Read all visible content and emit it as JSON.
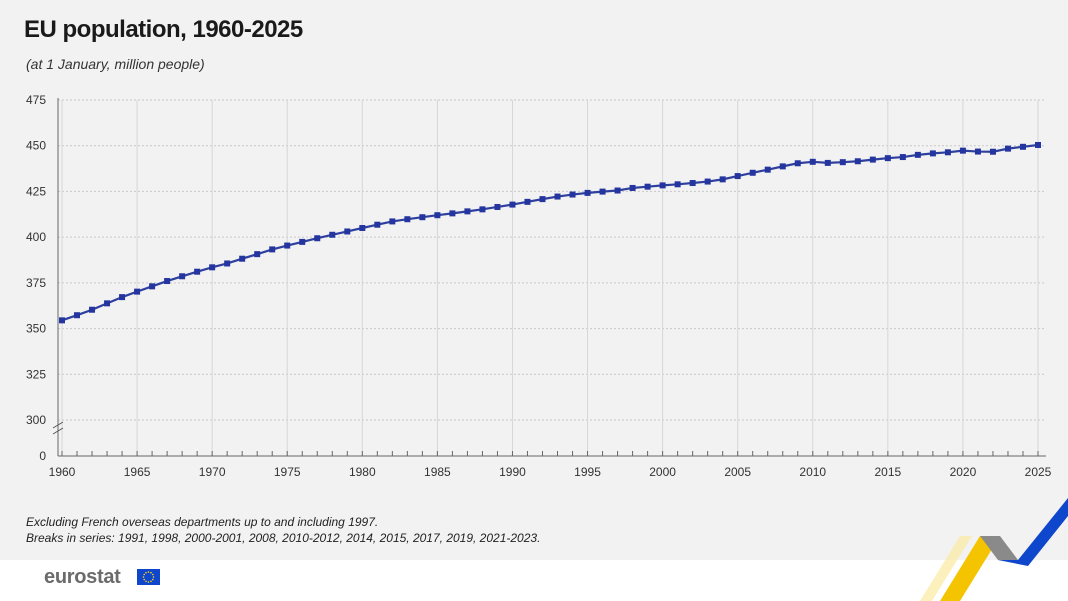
{
  "title": "EU population, 1960-2025",
  "subtitle": "(at 1 January, million people)",
  "notes": [
    "Excluding French overseas departments up to and including 1997.",
    "Breaks in series: 1991, 1998, 2000-2001, 2008, 2010-2012, 2014, 2015, 2017, 2019, 2021-2023."
  ],
  "logo_text": "eurostat",
  "colors": {
    "line": "#2e3f9e",
    "marker": "#2535a0",
    "grid": "#c8c8c8",
    "background": "#f2f2f2",
    "accent_yellow": "#f5c400",
    "accent_blue": "#0e47cb"
  },
  "chart_data": {
    "type": "line",
    "title": "EU population, 1960-2025",
    "subtitle": "(at 1 January, million people)",
    "xlabel": "",
    "ylabel": "",
    "ylim": [
      280,
      475
    ],
    "axis_break": true,
    "yticks": [
      475,
      450,
      425,
      400,
      375,
      350,
      325,
      300,
      0
    ],
    "xticks": [
      1960,
      1965,
      1970,
      1975,
      1980,
      1985,
      1990,
      1995,
      2000,
      2005,
      2010,
      2015,
      2020,
      2025
    ],
    "grid": true,
    "x": [
      1960,
      1961,
      1962,
      1963,
      1964,
      1965,
      1966,
      1967,
      1968,
      1969,
      1970,
      1971,
      1972,
      1973,
      1974,
      1975,
      1976,
      1977,
      1978,
      1979,
      1980,
      1981,
      1982,
      1983,
      1984,
      1985,
      1986,
      1987,
      1988,
      1989,
      1990,
      1991,
      1992,
      1993,
      1994,
      1995,
      1996,
      1997,
      1998,
      1999,
      2000,
      2001,
      2002,
      2003,
      2004,
      2005,
      2006,
      2007,
      2008,
      2009,
      2010,
      2011,
      2012,
      2013,
      2014,
      2015,
      2016,
      2017,
      2018,
      2019,
      2020,
      2021,
      2022,
      2023,
      2024,
      2025
    ],
    "series": [
      {
        "values": [
          354.5,
          357.3,
          360.3,
          363.8,
          367.2,
          370.2,
          373.1,
          376.0,
          378.6,
          381.1,
          383.5,
          385.6,
          388.2,
          390.7,
          393.3,
          395.4,
          397.4,
          399.4,
          401.3,
          403.1,
          405.0,
          406.8,
          408.6,
          409.8,
          410.9,
          412.0,
          413.0,
          414.1,
          415.2,
          416.5,
          417.8,
          419.3,
          420.8,
          422.2,
          423.3,
          424.2,
          424.9,
          425.5,
          426.9,
          427.6,
          428.3,
          428.9,
          429.6,
          430.4,
          431.6,
          433.4,
          435.2,
          436.9,
          438.7,
          440.4,
          441.2,
          440.6,
          441.0,
          441.5,
          442.4,
          443.2,
          443.8,
          445.0,
          445.8,
          446.4,
          447.3,
          446.8,
          446.7,
          448.4,
          449.4,
          450.4
        ]
      }
    ]
  }
}
